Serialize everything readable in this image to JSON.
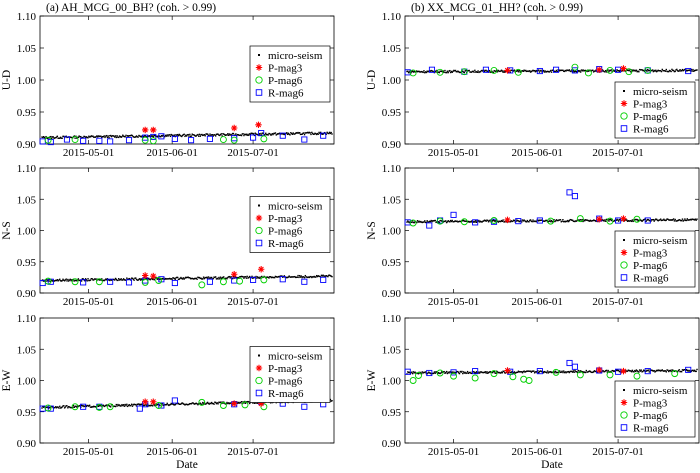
{
  "colors": {
    "micro": "#000000",
    "p3": "#ff0000",
    "p6": "#00d000",
    "r6": "#0000ff"
  },
  "chart_data": [
    {
      "id": "a-ud",
      "type": "scatter",
      "title": "(a)       AH_MCG_00_BH? (coh. > 0.99)",
      "ylabel": "U-D",
      "xlabel": "",
      "x_domain": [
        "2015-04-13",
        "2015-07-31"
      ],
      "x_ticks": [
        "2015-05-01",
        "2015-06-01",
        "2015-07-01"
      ],
      "ylim": [
        0.9,
        1.1
      ],
      "y_ticks": [
        "0.90",
        "0.95",
        "1.00",
        "1.05",
        "1.10"
      ],
      "legend": {
        "pos": "right-middle",
        "labels": [
          "micro-seism",
          "P-mag3",
          "P-mag6",
          "R-mag6"
        ]
      },
      "micro": {
        "start": 0.91,
        "end": 0.917
      },
      "p_mag3": [
        [
          "2015-05-22",
          0.922
        ],
        [
          "2015-05-25",
          0.922
        ],
        [
          "2015-06-24",
          0.925
        ],
        [
          "2015-07-03",
          0.93
        ]
      ],
      "p_mag6": [
        [
          "2015-04-16",
          0.906
        ],
        [
          "2015-04-26",
          0.907
        ],
        [
          "2015-05-22",
          0.906
        ],
        [
          "2015-05-25",
          0.905
        ],
        [
          "2015-06-20",
          0.907
        ],
        [
          "2015-06-24",
          0.906
        ],
        [
          "2015-07-05",
          0.908
        ]
      ],
      "r_mag6": [
        [
          "2015-04-14",
          0.904
        ],
        [
          "2015-04-17",
          0.903
        ],
        [
          "2015-04-23",
          0.907
        ],
        [
          "2015-04-29",
          0.905
        ],
        [
          "2015-05-05",
          0.905
        ],
        [
          "2015-05-09",
          0.904
        ],
        [
          "2015-05-16",
          0.906
        ],
        [
          "2015-05-22",
          0.91
        ],
        [
          "2015-05-25",
          0.911
        ],
        [
          "2015-05-28",
          0.912
        ],
        [
          "2015-06-02",
          0.908
        ],
        [
          "2015-06-08",
          0.906
        ],
        [
          "2015-06-15",
          0.908
        ],
        [
          "2015-06-24",
          0.909
        ],
        [
          "2015-07-01",
          0.91
        ],
        [
          "2015-07-04",
          0.917
        ],
        [
          "2015-07-12",
          0.913
        ],
        [
          "2015-07-20",
          0.907
        ],
        [
          "2015-07-27",
          0.913
        ]
      ]
    },
    {
      "id": "b-ud",
      "type": "scatter",
      "title": "(b)       XX_MCG_01_HH? (coh. > 0.99)",
      "ylabel": "U-D",
      "xlabel": "",
      "x_domain": [
        "2015-04-13",
        "2015-07-31"
      ],
      "x_ticks": [
        "2015-05-01",
        "2015-06-01",
        "2015-07-01"
      ],
      "ylim": [
        0.9,
        1.1
      ],
      "y_ticks": [
        "0.90",
        "0.95",
        "1.00",
        "1.05",
        "1.10"
      ],
      "legend": {
        "pos": "bottom-right",
        "labels": [
          "micro-seism",
          "P-mag3",
          "P-mag6",
          "R-mag6"
        ]
      },
      "micro": {
        "start": 1.013,
        "end": 1.015
      },
      "p_mag3": [
        [
          "2015-05-21",
          1.015
        ],
        [
          "2015-06-24",
          1.016
        ],
        [
          "2015-07-03",
          1.018
        ]
      ],
      "p_mag6": [
        [
          "2015-04-16",
          1.011
        ],
        [
          "2015-04-26",
          1.012
        ],
        [
          "2015-05-05",
          1.013
        ],
        [
          "2015-05-16",
          1.015
        ],
        [
          "2015-05-25",
          1.012
        ],
        [
          "2015-06-15",
          1.02
        ],
        [
          "2015-06-20",
          1.011
        ],
        [
          "2015-06-28",
          1.015
        ],
        [
          "2015-07-05",
          1.013
        ],
        [
          "2015-07-12",
          1.015
        ]
      ],
      "r_mag6": [
        [
          "2015-04-14",
          1.012
        ],
        [
          "2015-04-23",
          1.016
        ],
        [
          "2015-05-05",
          1.013
        ],
        [
          "2015-05-13",
          1.016
        ],
        [
          "2015-05-22",
          1.015
        ],
        [
          "2015-06-02",
          1.014
        ],
        [
          "2015-06-08",
          1.016
        ],
        [
          "2015-06-15",
          1.015
        ],
        [
          "2015-06-24",
          1.017
        ],
        [
          "2015-07-01",
          1.016
        ],
        [
          "2015-07-12",
          1.015
        ],
        [
          "2015-07-27",
          1.014
        ]
      ]
    },
    {
      "id": "a-ns",
      "type": "scatter",
      "title": "",
      "ylabel": "N-S",
      "xlabel": "",
      "x_domain": [
        "2015-04-13",
        "2015-07-31"
      ],
      "x_ticks": [
        "2015-05-01",
        "2015-06-01",
        "2015-07-01"
      ],
      "ylim": [
        0.9,
        1.1
      ],
      "y_ticks": [
        "0.90",
        "0.95",
        "1.00",
        "1.05",
        "1.10"
      ],
      "legend": {
        "pos": "right-middle",
        "labels": [
          "micro-seism",
          "P-mag3",
          "P-mag6",
          "R-mag6"
        ]
      },
      "micro": {
        "start": 0.92,
        "end": 0.927
      },
      "p_mag3": [
        [
          "2015-05-22",
          0.928
        ],
        [
          "2015-05-25",
          0.927
        ],
        [
          "2015-06-24",
          0.93
        ],
        [
          "2015-07-04",
          0.938
        ]
      ],
      "p_mag6": [
        [
          "2015-04-16",
          0.919
        ],
        [
          "2015-04-26",
          0.918
        ],
        [
          "2015-05-05",
          0.918
        ],
        [
          "2015-05-22",
          0.917
        ],
        [
          "2015-05-27",
          0.92
        ],
        [
          "2015-06-12",
          0.913
        ],
        [
          "2015-06-20",
          0.918
        ],
        [
          "2015-06-26",
          0.919
        ],
        [
          "2015-07-05",
          0.921
        ]
      ],
      "r_mag6": [
        [
          "2015-04-14",
          0.916
        ],
        [
          "2015-04-17",
          0.918
        ],
        [
          "2015-04-29",
          0.917
        ],
        [
          "2015-05-09",
          0.918
        ],
        [
          "2015-05-16",
          0.917
        ],
        [
          "2015-05-22",
          0.92
        ],
        [
          "2015-05-28",
          0.922
        ],
        [
          "2015-06-02",
          0.916
        ],
        [
          "2015-06-15",
          0.918
        ],
        [
          "2015-06-24",
          0.92
        ],
        [
          "2015-07-01",
          0.921
        ],
        [
          "2015-07-12",
          0.922
        ],
        [
          "2015-07-20",
          0.918
        ],
        [
          "2015-07-27",
          0.921
        ]
      ]
    },
    {
      "id": "b-ns",
      "type": "scatter",
      "title": "",
      "ylabel": "N-S",
      "xlabel": "",
      "x_domain": [
        "2015-04-13",
        "2015-07-31"
      ],
      "x_ticks": [
        "2015-05-01",
        "2015-06-01",
        "2015-07-01"
      ],
      "ylim": [
        0.9,
        1.1
      ],
      "y_ticks": [
        "0.90",
        "0.95",
        "1.00",
        "1.05",
        "1.10"
      ],
      "legend": {
        "pos": "bottom-right",
        "labels": [
          "micro-seism",
          "P-mag3",
          "P-mag6",
          "R-mag6"
        ]
      },
      "micro": {
        "start": 1.014,
        "end": 1.017
      },
      "p_mag3": [
        [
          "2015-05-21",
          1.017
        ],
        [
          "2015-06-24",
          1.018
        ],
        [
          "2015-07-03",
          1.019
        ]
      ],
      "p_mag6": [
        [
          "2015-04-16",
          1.012
        ],
        [
          "2015-04-26",
          1.015
        ],
        [
          "2015-05-05",
          1.014
        ],
        [
          "2015-05-16",
          1.016
        ],
        [
          "2015-06-06",
          1.015
        ],
        [
          "2015-06-17",
          1.019
        ],
        [
          "2015-06-28",
          1.015
        ],
        [
          "2015-07-08",
          1.018
        ]
      ],
      "r_mag6": [
        [
          "2015-04-14",
          1.013
        ],
        [
          "2015-04-22",
          1.008
        ],
        [
          "2015-04-26",
          1.016
        ],
        [
          "2015-05-01",
          1.025
        ],
        [
          "2015-05-09",
          1.013
        ],
        [
          "2015-05-16",
          1.014
        ],
        [
          "2015-05-25",
          1.015
        ],
        [
          "2015-06-02",
          1.016
        ],
        [
          "2015-06-13",
          1.061
        ],
        [
          "2015-06-15",
          1.055
        ],
        [
          "2015-06-24",
          1.019
        ],
        [
          "2015-07-01",
          1.016
        ],
        [
          "2015-07-12",
          1.016
        ]
      ]
    },
    {
      "id": "a-ew",
      "type": "scatter",
      "title": "",
      "ylabel": "E-W",
      "xlabel": "Date",
      "x_domain": [
        "2015-04-13",
        "2015-07-31"
      ],
      "x_ticks": [
        "2015-05-01",
        "2015-06-01",
        "2015-07-01"
      ],
      "ylim": [
        0.9,
        1.1
      ],
      "y_ticks": [
        "0.90",
        "0.95",
        "1.00",
        "1.05",
        "1.10"
      ],
      "legend": {
        "pos": "right-middle",
        "labels": [
          "micro-seism",
          "P-mag3",
          "P-mag6",
          "R-mag6"
        ]
      },
      "micro": {
        "start": 0.957,
        "end": 0.968
      },
      "p_mag3": [
        [
          "2015-05-22",
          0.966
        ],
        [
          "2015-05-25",
          0.966
        ],
        [
          "2015-06-24",
          0.963
        ],
        [
          "2015-07-04",
          0.963
        ]
      ],
      "p_mag6": [
        [
          "2015-04-16",
          0.956
        ],
        [
          "2015-04-26",
          0.958
        ],
        [
          "2015-05-05",
          0.957
        ],
        [
          "2015-05-09",
          0.958
        ],
        [
          "2015-05-27",
          0.96
        ],
        [
          "2015-06-12",
          0.965
        ],
        [
          "2015-06-20",
          0.96
        ],
        [
          "2015-06-28",
          0.961
        ],
        [
          "2015-07-05",
          0.958
        ]
      ],
      "r_mag6": [
        [
          "2015-04-14",
          0.955
        ],
        [
          "2015-04-17",
          0.955
        ],
        [
          "2015-04-29",
          0.958
        ],
        [
          "2015-05-05",
          0.958
        ],
        [
          "2015-05-20",
          0.955
        ],
        [
          "2015-05-22",
          0.962
        ],
        [
          "2015-05-28",
          0.96
        ],
        [
          "2015-06-02",
          0.968
        ],
        [
          "2015-06-24",
          0.962
        ],
        [
          "2015-07-01",
          0.97
        ],
        [
          "2015-07-04",
          0.966
        ],
        [
          "2015-07-12",
          0.963
        ],
        [
          "2015-07-20",
          0.958
        ],
        [
          "2015-07-27",
          0.962
        ]
      ]
    },
    {
      "id": "b-ew",
      "type": "scatter",
      "title": "",
      "ylabel": "E-W",
      "xlabel": "Date",
      "x_domain": [
        "2015-04-13",
        "2015-07-31"
      ],
      "x_ticks": [
        "2015-05-01",
        "2015-06-01",
        "2015-07-01"
      ],
      "ylim": [
        0.9,
        1.1
      ],
      "y_ticks": [
        "0.90",
        "0.95",
        "1.00",
        "1.05",
        "1.10"
      ],
      "legend": {
        "pos": "bottom-right",
        "labels": [
          "micro-seism",
          "P-mag3",
          "P-mag6",
          "R-mag6"
        ]
      },
      "micro": {
        "start": 1.012,
        "end": 1.016
      },
      "p_mag3": [
        [
          "2015-05-21",
          1.016
        ],
        [
          "2015-06-24",
          1.017
        ],
        [
          "2015-07-03",
          1.015
        ]
      ],
      "p_mag6": [
        [
          "2015-04-16",
          1.0
        ],
        [
          "2015-04-18",
          1.008
        ],
        [
          "2015-04-26",
          1.012
        ],
        [
          "2015-05-01",
          1.007
        ],
        [
          "2015-05-09",
          1.004
        ],
        [
          "2015-05-16",
          1.011
        ],
        [
          "2015-05-23",
          1.006
        ],
        [
          "2015-05-27",
          1.002
        ],
        [
          "2015-05-29",
          1.0
        ],
        [
          "2015-06-08",
          1.013
        ],
        [
          "2015-06-17",
          1.009
        ],
        [
          "2015-06-28",
          1.009
        ],
        [
          "2015-07-08",
          1.007
        ],
        [
          "2015-07-22",
          1.011
        ]
      ],
      "r_mag6": [
        [
          "2015-04-14",
          1.014
        ],
        [
          "2015-04-22",
          1.012
        ],
        [
          "2015-05-01",
          1.013
        ],
        [
          "2015-05-09",
          1.015
        ],
        [
          "2015-05-22",
          1.014
        ],
        [
          "2015-06-02",
          1.015
        ],
        [
          "2015-06-13",
          1.028
        ],
        [
          "2015-06-15",
          1.022
        ],
        [
          "2015-06-24",
          1.016
        ],
        [
          "2015-07-01",
          1.014
        ],
        [
          "2015-07-12",
          1.015
        ],
        [
          "2015-07-27",
          1.017
        ]
      ]
    }
  ]
}
